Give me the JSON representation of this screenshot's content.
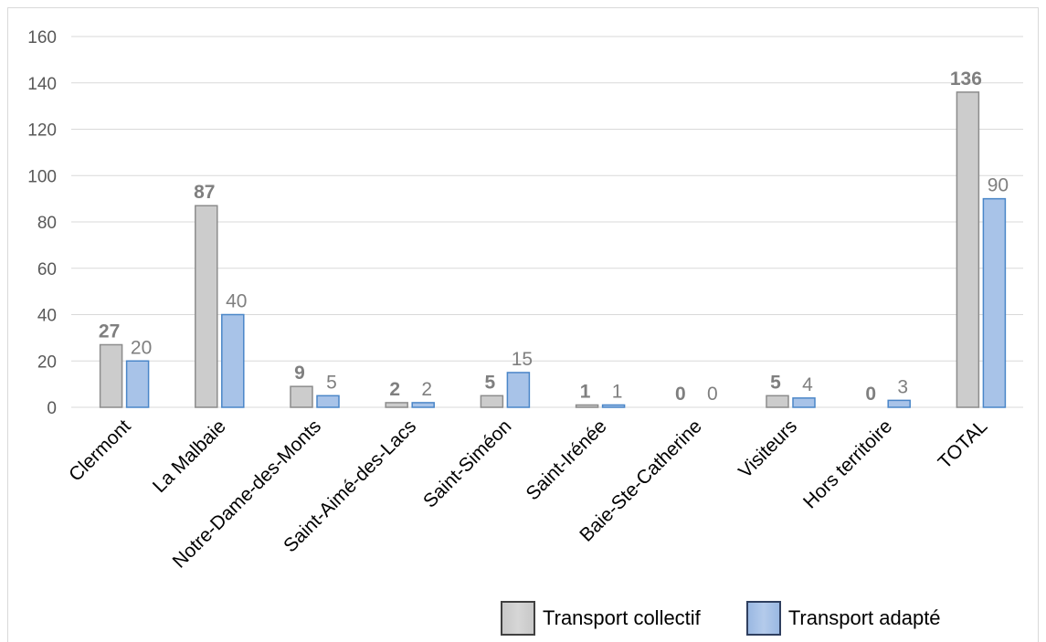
{
  "chart_data": {
    "type": "bar",
    "title": "",
    "xlabel": "",
    "ylabel": "",
    "ylim": [
      0,
      160
    ],
    "yticks": [
      0,
      20,
      40,
      60,
      80,
      100,
      120,
      140,
      160
    ],
    "grid": true,
    "legend_position": "bottom-right",
    "categories": [
      "Clermont",
      "La Malbaie",
      "Notre-Dame-des-Monts",
      "Saint-Aimé-des-Lacs",
      "Saint-Siméon",
      "Saint-Irénée",
      "Baie-Ste-Catherine",
      "Visiteurs",
      "Hors territoire",
      "TOTAL"
    ],
    "series": [
      {
        "name": "Transport collectif",
        "values": [
          27,
          87,
          9,
          2,
          5,
          1,
          0,
          5,
          0,
          136
        ],
        "color": "#cccccc",
        "stroke": "#8c8c8c"
      },
      {
        "name": "Transport adapté",
        "values": [
          20,
          40,
          5,
          2,
          15,
          1,
          0,
          4,
          3,
          90
        ],
        "color": "#a8c3e8",
        "stroke": "#4a86c8"
      }
    ]
  },
  "legend": {
    "series_a": "Transport collectif",
    "series_b": "Transport adapté"
  }
}
